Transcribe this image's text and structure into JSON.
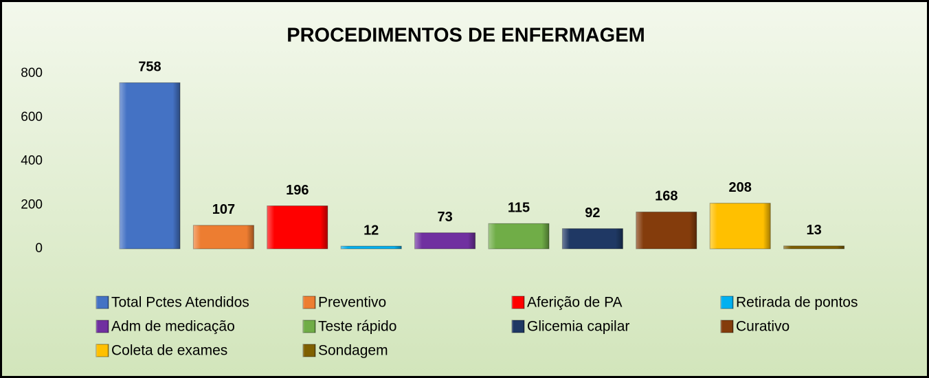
{
  "chart_data": {
    "type": "bar",
    "title": "PROCEDIMENTOS DE ENFERMAGEM",
    "categories": [
      null
    ],
    "series": [
      {
        "name": "Total Pctes Atendidos",
        "color": "#4472c4",
        "values": [
          758
        ]
      },
      {
        "name": "Preventivo",
        "color": "#ed7d31",
        "values": [
          107
        ]
      },
      {
        "name": "Aferição de PA",
        "color": "#ff0000",
        "values": [
          196
        ]
      },
      {
        "name": "Retirada de pontos",
        "color": "#00b0f0",
        "values": [
          12
        ]
      },
      {
        "name": "Adm de medicação",
        "color": "#7030a0",
        "values": [
          73
        ]
      },
      {
        "name": "Teste rápido",
        "color": "#70ad47",
        "values": [
          115
        ]
      },
      {
        "name": "Glicemia capilar",
        "color": "#1f3864",
        "values": [
          92
        ]
      },
      {
        "name": "Curativo",
        "color": "#843c0c",
        "values": [
          168
        ]
      },
      {
        "name": "Coleta de exames",
        "color": "#ffc000",
        "values": [
          208
        ]
      },
      {
        "name": "Sondagem",
        "color": "#7f6000",
        "values": [
          13
        ]
      }
    ],
    "ylim": [
      0,
      800
    ],
    "yticks": [
      0,
      200,
      400,
      600,
      800
    ],
    "grid": false,
    "legend": "bottom"
  }
}
